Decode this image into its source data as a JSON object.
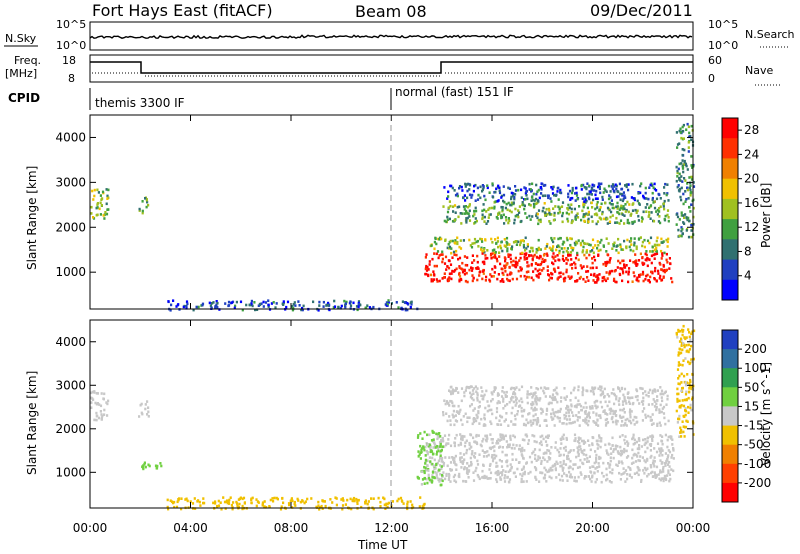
{
  "header": {
    "station": "Fort Hays East (fitACF)",
    "beam": "Beam 08",
    "date": "09/Dec/2011"
  },
  "strips": {
    "nsky_label": "N.Sky",
    "nsearch_label": "N.Search",
    "nsky_tick_top": "10^5",
    "nsky_tick_bottom": "10^0",
    "nsearch_tick_top": "10^5",
    "nsearch_tick_bottom": "10^0",
    "freq_label_line1": "Freq.",
    "freq_label_line2": "[MHz]",
    "freq_tick_top": "18",
    "freq_tick_bottom": "8",
    "nave_label": "Nave",
    "nave_tick_top": "60",
    "nave_tick_bottom": "0",
    "cpid_label": "CPID",
    "cpid_segments": [
      {
        "label": "themis 3300 IF",
        "start_hour": 0,
        "end_hour": 12
      },
      {
        "label": "normal (fast) 151 IF",
        "start_hour": 12,
        "end_hour": 24
      }
    ]
  },
  "chart_data": [
    {
      "type": "heatmap",
      "panel": "power",
      "xlabel": "",
      "ylabel": "Slant Range [km]",
      "xlim": [
        0,
        24
      ],
      "ylim": [
        180,
        4500
      ],
      "yticks": [
        "1000",
        "2000",
        "3000",
        "4000"
      ],
      "colorbar_label": "Power [dB]",
      "colorbar_ticks": [
        "4",
        "8",
        "12",
        "16",
        "20",
        "24",
        "28"
      ],
      "colorbar_range": [
        0,
        30
      ],
      "colors": [
        "#0000ff",
        "#2040c0",
        "#307070",
        "#40a040",
        "#a0c020",
        "#f0c000",
        "#f08000",
        "#ff3000",
        "#ff0000"
      ],
      "regions": [
        {
          "t0": 13.3,
          "t1": 23.2,
          "r0": 800,
          "r1": 1450,
          "power": 28
        },
        {
          "t0": 13.5,
          "t1": 23.0,
          "r0": 1450,
          "r1": 1800,
          "power": 14
        },
        {
          "t0": 14.0,
          "t1": 23.0,
          "r0": 2100,
          "r1": 2600,
          "power": 12
        },
        {
          "t0": 14.0,
          "t1": 23.0,
          "r0": 2600,
          "r1": 3000,
          "power": 6
        },
        {
          "t0": 0.0,
          "t1": 0.7,
          "r0": 2200,
          "r1": 2900,
          "power": 14
        },
        {
          "t0": 1.9,
          "t1": 2.3,
          "r0": 2300,
          "r1": 2700,
          "power": 12
        },
        {
          "t0": 23.3,
          "t1": 24.0,
          "r0": 1800,
          "r1": 4400,
          "power": 10
        },
        {
          "t0": 3.0,
          "t1": 13.0,
          "r0": 180,
          "r1": 400,
          "power": 6
        }
      ]
    },
    {
      "type": "heatmap",
      "panel": "velocity",
      "xlabel": "Time UT",
      "ylabel": "Slant Range [km]",
      "xlim": [
        0,
        24
      ],
      "ylim": [
        180,
        4500
      ],
      "xticks": [
        "00:00",
        "04:00",
        "08:00",
        "12:00",
        "16:00",
        "20:00",
        "00:00"
      ],
      "yticks": [
        "1000",
        "2000",
        "3000",
        "4000"
      ],
      "colorbar_label": "Velocity [m s^-1]",
      "colorbar_ticks": [
        "200",
        "100",
        "50",
        "15",
        "-15",
        "-50",
        "-100",
        "-200"
      ],
      "colorbar_range": [
        -250,
        250
      ],
      "colors": [
        "#2040c0",
        "#3070a0",
        "#30a050",
        "#70d040",
        "#c8c8c8",
        "#f0c000",
        "#f08000",
        "#ff4000",
        "#ff0000"
      ],
      "regions": [
        {
          "t0": 13.3,
          "t1": 23.2,
          "r0": 800,
          "r1": 1900,
          "velocity": 0
        },
        {
          "t0": 14.0,
          "t1": 23.0,
          "r0": 2100,
          "r1": 3000,
          "velocity": 0
        },
        {
          "t0": 13.0,
          "t1": 14.0,
          "r0": 700,
          "r1": 2000,
          "velocity": 40
        },
        {
          "t0": 0.0,
          "t1": 0.7,
          "r0": 2200,
          "r1": 2900,
          "velocity": 0
        },
        {
          "t0": 1.9,
          "t1": 2.3,
          "r0": 2300,
          "r1": 2700,
          "velocity": 0
        },
        {
          "t0": 2.0,
          "t1": 3.0,
          "r0": 1050,
          "r1": 1250,
          "velocity": 40
        },
        {
          "t0": 23.3,
          "t1": 24.0,
          "r0": 1800,
          "r1": 4400,
          "velocity": -40
        },
        {
          "t0": 3.0,
          "t1": 13.3,
          "r0": 180,
          "r1": 450,
          "velocity": -60
        }
      ]
    }
  ]
}
